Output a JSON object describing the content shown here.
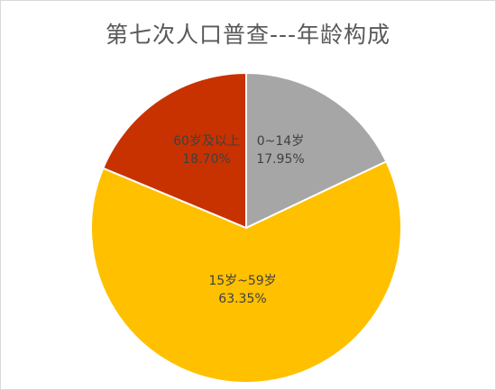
{
  "chart_data": {
    "type": "pie",
    "title": "第七次人口普查---年龄构成",
    "slices": [
      {
        "label": "0~14岁",
        "value": 17.95,
        "value_text": "17.95%",
        "color": "#a6a6a6"
      },
      {
        "label": "15岁~59岁",
        "value": 63.35,
        "value_text": "63.35%",
        "color": "#ffc000"
      },
      {
        "label": "60岁及以上",
        "value": 18.7,
        "value_text": "18.70%",
        "color": "#c83200"
      }
    ],
    "start": "12 o'clock",
    "direction": "clockwise",
    "data_labels": "category and percent inside slices",
    "legend": "none"
  }
}
